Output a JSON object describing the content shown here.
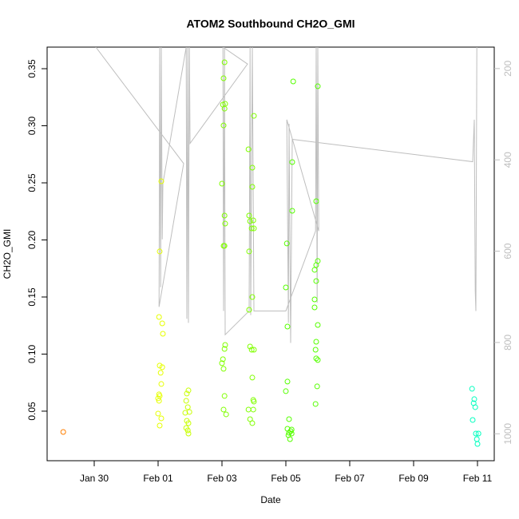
{
  "chart_data": {
    "type": "scatter",
    "title": "ATOM2 Southbound CH2O_GMI",
    "x_label": "Date",
    "y_label": "CH2O_GMI",
    "xlim": [
      28.525,
      42.525
    ],
    "ylim": [
      0.0066,
      0.3689
    ],
    "y2lim": [
      1059,
      153
    ],
    "xticks": [
      {
        "value": 30,
        "label": "Jan 30"
      },
      {
        "value": 32,
        "label": "Feb 01"
      },
      {
        "value": 34,
        "label": "Feb 03"
      },
      {
        "value": 36,
        "label": "Feb 05"
      },
      {
        "value": 38,
        "label": "Feb 07"
      },
      {
        "value": 40,
        "label": "Feb 09"
      },
      {
        "value": 42,
        "label": "Feb 11"
      }
    ],
    "yticks": [
      0.05,
      {
        "value": 0.1,
        "label": "0.10"
      },
      0.15,
      {
        "value": 0.2,
        "label": "0.20"
      },
      0.25,
      {
        "value": 0.3,
        "label": "0.30"
      },
      0.35
    ],
    "y2ticks": [
      200,
      400,
      600,
      800,
      1000
    ],
    "series": [
      {
        "color": "#ff7f00",
        "x": [
          29.03
        ],
        "values": [
          0.0318
        ]
      },
      {
        "color": "#e6ff00",
        "x": [
          32.1,
          32.05,
          32.03,
          32.13,
          32.15,
          32.05,
          32.13,
          32.08,
          32.1,
          32.03,
          32.0,
          32.05,
          32.03,
          32.0,
          32.1,
          32.05
        ],
        "values": [
          0.2514,
          0.1899,
          0.1325,
          0.1269,
          0.1178,
          0.0899,
          0.0885,
          0.0836,
          0.0738,
          0.0647,
          0.0612,
          0.0633,
          0.0591,
          0.0479,
          0.0437,
          0.0374
        ]
      },
      {
        "color": "#c8ff00",
        "x": [
          32.9,
          32.95,
          32.88,
          32.93,
          32.98,
          32.85,
          32.9,
          32.95,
          32.88,
          32.93,
          32.95
        ],
        "values": [
          0.0654,
          0.0682,
          0.0591,
          0.0535,
          0.0493,
          0.0486,
          0.0416,
          0.0395,
          0.0353,
          0.0332,
          0.0304
        ]
      },
      {
        "color": "#80ff00",
        "x": [
          34.08,
          34.05,
          34.03,
          34.1,
          34.08,
          34.05,
          34.0,
          34.08,
          34.1,
          34.05,
          34.08,
          34.1,
          34.08,
          34.03,
          34.05,
          34.0,
          34.08,
          34.05,
          34.13,
          35.0,
          34.83,
          34.95,
          34.95,
          34.85,
          34.98,
          34.88,
          35.0,
          34.93,
          34.85,
          34.95,
          34.85,
          34.88,
          34.93,
          35.0,
          34.95,
          34.98,
          35.0,
          34.83,
          34.98,
          34.88,
          34.95
        ],
        "values": [
          0.3556,
          0.3416,
          0.3185,
          0.3192,
          0.315,
          0.3003,
          0.2493,
          0.2213,
          0.2143,
          0.1948,
          0.1948,
          0.108,
          0.1045,
          0.0955,
          0.0871,
          0.092,
          0.0633,
          0.0514,
          0.0472,
          0.3087,
          0.2794,
          0.2633,
          0.2465,
          0.2213,
          0.2171,
          0.2164,
          0.2101,
          0.2101,
          0.1899,
          0.15,
          0.1388,
          0.1066,
          0.1038,
          0.1038,
          0.0794,
          0.0598,
          0.0584,
          0.0514,
          0.0514,
          0.043,
          0.0395
        ]
      },
      {
        "color": "#55ff00",
        "x": [
          36.23,
          36.2,
          36.2,
          36.03,
          36.0,
          36.05,
          36.05,
          36.0,
          36.1,
          36.05,
          36.15,
          36.1,
          36.18,
          36.08,
          36.13,
          36.18,
          37.0,
          36.95,
          37.0,
          36.95,
          36.9,
          36.95,
          36.9,
          36.9,
          37.0,
          36.95,
          36.93,
          36.95,
          37.0,
          36.98,
          36.93
        ],
        "values": [
          0.3388,
          0.2682,
          0.2255,
          0.1969,
          0.1584,
          0.1241,
          0.0759,
          0.0675,
          0.043,
          0.0346,
          0.0325,
          0.0311,
          0.0304,
          0.029,
          0.0255,
          0.0339,
          0.3346,
          0.2339,
          0.1815,
          0.178,
          0.1738,
          0.164,
          0.1479,
          0.1409,
          0.1255,
          0.1108,
          0.1038,
          0.0962,
          0.0948,
          0.0717,
          0.0563
        ]
      },
      {
        "color": "#00ffbf",
        "x": [
          41.83,
          41.9,
          41.88,
          41.93,
          41.85,
          41.95,
          42.03,
          41.98,
          42.0
        ],
        "values": [
          0.0696,
          0.0605,
          0.057,
          0.0535,
          0.0423,
          0.0304,
          0.0304,
          0.0255,
          0.0213
        ]
      },
      {
        "type": "line",
        "axis": "y2",
        "color": "#bebebe",
        "x": [
          30.05,
          32.8,
          32.03,
          32.05,
          32.08,
          32.1,
          32.13,
          32.15,
          32.88,
          32.9,
          32.93,
          32.95,
          32.98,
          33.0,
          34.8,
          34.03,
          34.05,
          34.08,
          34.1,
          34.85,
          34.88,
          34.9,
          34.95,
          35.0,
          36.0,
          36.93,
          36.95,
          36.98,
          37.0,
          37.03,
          36.03,
          36.08,
          36.1,
          36.15,
          36.2,
          41.85,
          41.9,
          41.93,
          41.95,
          41.98
        ],
        "values": [
          153,
          408,
          722,
          153,
          679,
          153,
          574,
          452,
          153,
          748,
          153,
          757,
          153,
          364,
          190,
          153,
          731,
          153,
          783,
          731,
          153,
          740,
          153,
          731,
          731,
          556,
          153,
          713,
          153,
          556,
          312,
          757,
          321,
          801,
          355,
          404,
          312,
          687,
          731,
          153
        ]
      }
    ]
  }
}
